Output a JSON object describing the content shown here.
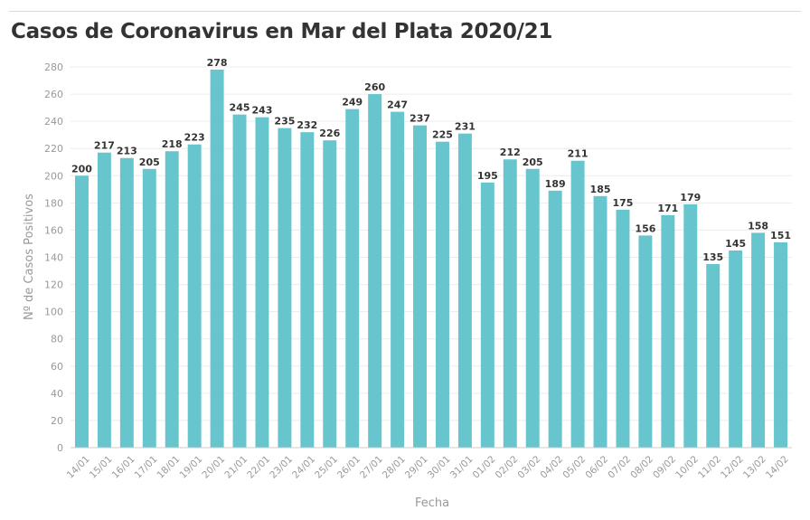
{
  "title": "Casos de Coronavirus en Mar del Plata 2020/21",
  "chart_data": {
    "type": "bar",
    "title": "Casos de Coronavirus en Mar del Plata 2020/21",
    "xlabel": "Fecha",
    "ylabel": "Nº de Casos Positivos",
    "ylim": [
      0,
      280
    ],
    "yticks": [
      0,
      20,
      40,
      60,
      80,
      100,
      120,
      140,
      160,
      180,
      200,
      220,
      240,
      260,
      280
    ],
    "grid": true,
    "bar_color": "#67c5cd",
    "categories": [
      "14/01",
      "15/01",
      "16/01",
      "17/01",
      "18/01",
      "19/01",
      "20/01",
      "21/01",
      "22/01",
      "23/01",
      "24/01",
      "25/01",
      "26/01",
      "27/01",
      "28/01",
      "29/01",
      "30/01",
      "31/01",
      "01/02",
      "02/02",
      "03/02",
      "04/02",
      "05/02",
      "06/02",
      "07/02",
      "08/02",
      "09/02",
      "10/02",
      "11/02",
      "12/02",
      "13/02",
      "14/02"
    ],
    "values": [
      200,
      217,
      213,
      205,
      218,
      223,
      278,
      245,
      243,
      235,
      232,
      226,
      249,
      260,
      247,
      237,
      225,
      231,
      195,
      212,
      205,
      189,
      211,
      185,
      175,
      156,
      171,
      179,
      135,
      145,
      158,
      151
    ]
  }
}
